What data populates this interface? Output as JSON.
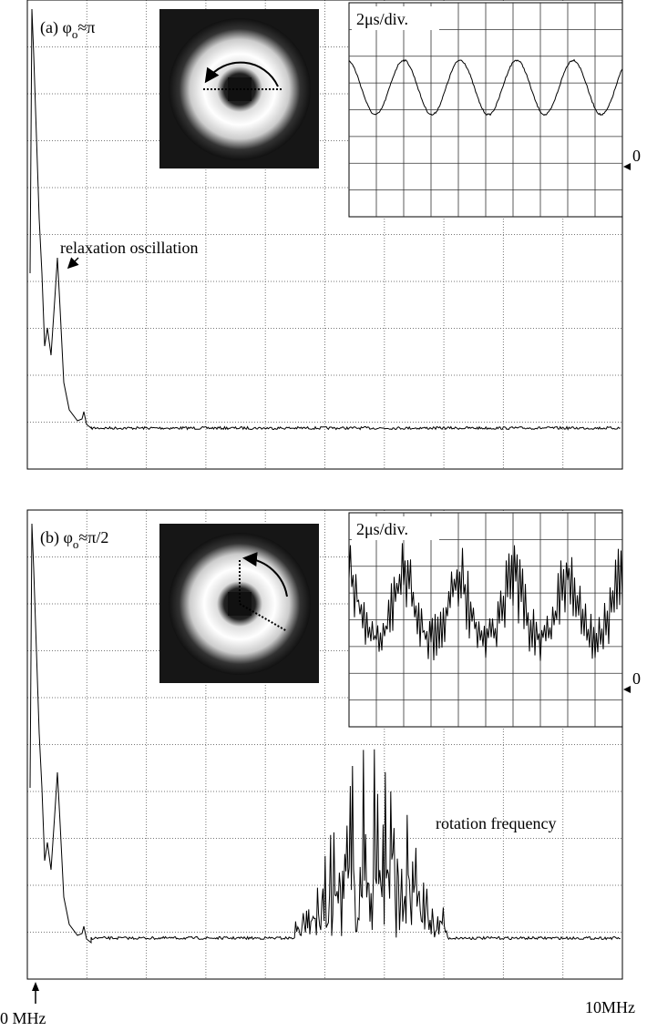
{
  "panels": [
    {
      "label": {
        "prefix": "(a) φ",
        "sub": "o",
        "suffix": "≈π"
      },
      "inset_scale": "2μs/div.",
      "zero_marker": "0",
      "annotation": "relaxation oscillation"
    },
    {
      "label": {
        "prefix": "(b) φ",
        "sub": "o",
        "suffix": "≈π/2"
      },
      "inset_scale": "2μs/div.",
      "zero_marker": "0",
      "annotation": "rotation frequency"
    }
  ],
  "x_axis": {
    "start_label": "0 MHz",
    "end_label": "10MHz"
  }
}
